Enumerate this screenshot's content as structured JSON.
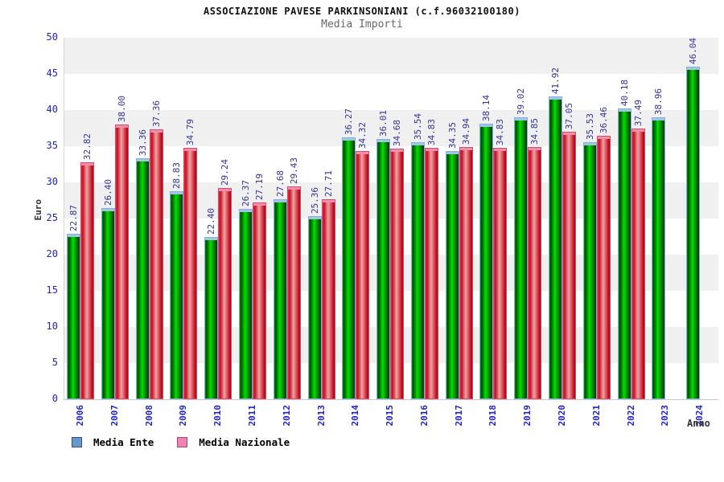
{
  "header": {
    "title": "ASSOCIAZIONE PAVESE PARKINSONIANI (c.f.96032100180)",
    "subtitle": "Media Importi"
  },
  "axes": {
    "y_title": "Euro",
    "x_title": "Anno",
    "y_ticks": [
      0,
      5,
      10,
      15,
      20,
      25,
      30,
      35,
      40,
      45,
      50
    ]
  },
  "legend": {
    "items": [
      {
        "label": "Media Ente",
        "color": "#6699cc",
        "border": "#33517a"
      },
      {
        "label": "Media Nazionale",
        "color": "#ee82b0",
        "border": "#a04a74"
      }
    ]
  },
  "chart_data": {
    "type": "bar",
    "title": "ASSOCIAZIONE PAVESE PARKINSONIANI (c.f.96032100180)",
    "subtitle": "Media Importi",
    "xlabel": "Anno",
    "ylabel": "Euro",
    "ylim": [
      0,
      50
    ],
    "y_tick_step": 5,
    "grid": "alternating-horizontal-bands",
    "legend_position": "bottom-left",
    "value_label_style": "rotated 90deg above each bar, two decimals",
    "categories": [
      "2006",
      "2007",
      "2008",
      "2009",
      "2010",
      "2011",
      "2012",
      "2013",
      "2014",
      "2015",
      "2016",
      "2017",
      "2018",
      "2019",
      "2020",
      "2021",
      "2022",
      "2023",
      "2024"
    ],
    "series": [
      {
        "name": "Media Ente",
        "legend_color": "#6699cc",
        "bar_style": "green-gradient-cylinder",
        "values": [
          22.87,
          26.4,
          33.36,
          28.83,
          22.4,
          26.37,
          27.68,
          25.36,
          36.27,
          36.01,
          35.54,
          34.35,
          38.14,
          39.02,
          41.92,
          35.53,
          40.18,
          38.96,
          46.04
        ]
      },
      {
        "name": "Media Nazionale",
        "legend_color": "#ee82b0",
        "bar_style": "red-gradient-cylinder",
        "values": [
          32.82,
          38.0,
          37.36,
          34.79,
          29.24,
          27.19,
          29.43,
          27.71,
          34.32,
          34.68,
          34.83,
          34.94,
          34.83,
          34.85,
          37.05,
          36.46,
          37.49,
          null,
          null
        ]
      }
    ]
  },
  "colors": {
    "tick_label": "#2222cc",
    "value_label": "#333399",
    "band_gray": "#f0f0f0",
    "green_mid": "#00e100",
    "green_edge": "#003000",
    "green_cap": "#a6c4e2",
    "green_border": "#7db4e8",
    "red_mid": "#f2a2a2",
    "red_edge": "#9c0815",
    "red_cap": "#ee8fae",
    "red_border": "#e04868"
  }
}
